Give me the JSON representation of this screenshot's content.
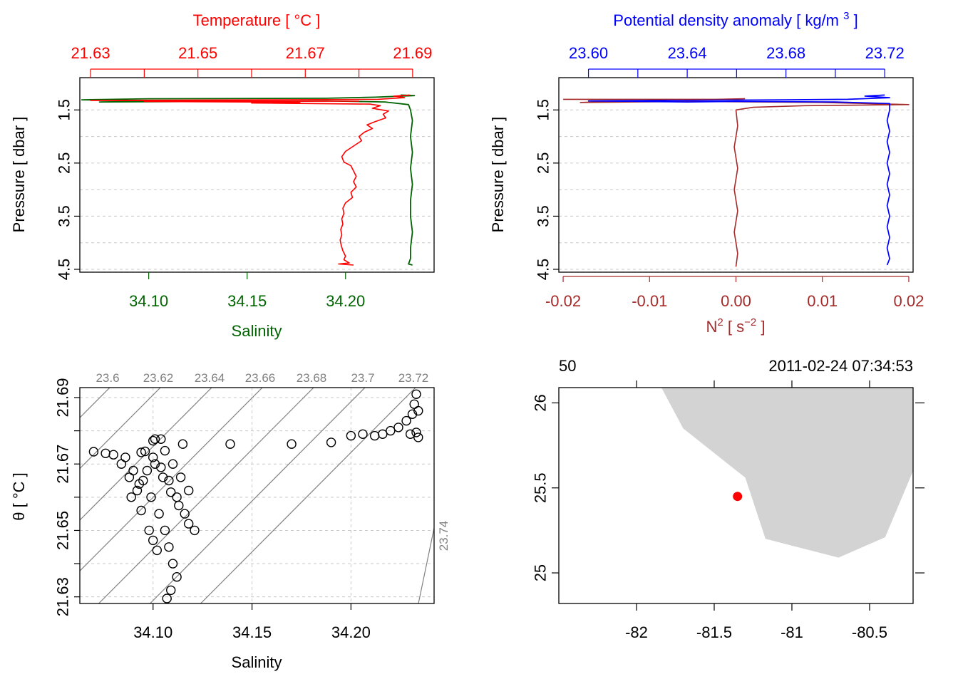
{
  "colors": {
    "temperature": "#ff0000",
    "salinity": "#006400",
    "density": "#0000ff",
    "n2": "#a52a2a",
    "isopycnal": "#808080",
    "land": "#d3d3d3",
    "station": "#ff0000"
  },
  "chart_data": [
    {
      "id": "ts_profile",
      "type": "line",
      "title": "",
      "top_axis_label": "Temperature [ °C ]",
      "bottom_axis_label": "Salinity",
      "ylabel": "Pressure [ dbar ]",
      "ylim": [
        4.5,
        1.0
      ],
      "yticks": [
        1.5,
        2.5,
        3.5,
        4.5
      ],
      "y_gridlines": [
        1.5,
        2.0,
        2.5,
        3.0,
        3.5,
        4.0,
        4.5
      ],
      "temperature_lim": [
        21.628,
        21.694
      ],
      "temperature_ticks": [
        21.63,
        21.64,
        21.65,
        21.66,
        21.67,
        21.68,
        21.69
      ],
      "temperature_tick_labels": [
        "21.63",
        "21.65",
        "21.67",
        "21.69"
      ],
      "salinity_lim": [
        34.065,
        34.245
      ],
      "salinity_ticks": [
        34.1,
        34.15,
        34.2
      ],
      "salinity_tick_labels": [
        "34.10",
        "34.15",
        "34.20"
      ],
      "series": [
        {
          "name": "Temperature",
          "axis": "temperature",
          "points": [
            [
              21.6895,
              1.22
            ],
            [
              21.6865,
              1.24
            ],
            [
              21.6885,
              1.27
            ],
            [
              21.6835,
              1.3
            ],
            [
              21.663,
              1.31
            ],
            [
              21.63,
              1.32
            ],
            [
              21.655,
              1.33
            ],
            [
              21.68,
              1.335
            ],
            [
              21.64,
              1.34
            ],
            [
              21.669,
              1.355
            ],
            [
              21.66,
              1.37
            ],
            [
              21.682,
              1.39
            ],
            [
              21.684,
              1.42
            ],
            [
              21.6825,
              1.47
            ],
            [
              21.6855,
              1.52
            ],
            [
              21.6845,
              1.58
            ],
            [
              21.685,
              1.65
            ],
            [
              21.683,
              1.72
            ],
            [
              21.6815,
              1.78
            ],
            [
              21.6825,
              1.85
            ],
            [
              21.681,
              1.92
            ],
            [
              21.68,
              2.0
            ],
            [
              21.6805,
              2.08
            ],
            [
              21.679,
              2.18
            ],
            [
              21.6775,
              2.28
            ],
            [
              21.6768,
              2.38
            ],
            [
              21.6772,
              2.48
            ],
            [
              21.6785,
              2.55
            ],
            [
              21.679,
              2.65
            ],
            [
              21.6795,
              2.75
            ],
            [
              21.679,
              2.85
            ],
            [
              21.6795,
              2.95
            ],
            [
              21.6785,
              3.05
            ],
            [
              21.6788,
              3.15
            ],
            [
              21.6775,
              3.25
            ],
            [
              21.677,
              3.35
            ],
            [
              21.6772,
              3.45
            ],
            [
              21.6768,
              3.55
            ],
            [
              21.677,
              3.65
            ],
            [
              21.6766,
              3.75
            ],
            [
              21.6768,
              3.85
            ],
            [
              21.6765,
              3.95
            ],
            [
              21.6767,
              4.05
            ],
            [
              21.677,
              4.15
            ],
            [
              21.6775,
              4.25
            ],
            [
              21.6772,
              4.32
            ],
            [
              21.6782,
              4.38
            ],
            [
              21.6762,
              4.4
            ],
            [
              21.679,
              4.42
            ]
          ]
        },
        {
          "name": "Salinity",
          "axis": "salinity",
          "points": [
            [
              34.228,
              1.22
            ],
            [
              34.235,
              1.23
            ],
            [
              34.215,
              1.26
            ],
            [
              34.19,
              1.28
            ],
            [
              34.1,
              1.29
            ],
            [
              34.066,
              1.31
            ],
            [
              34.11,
              1.33
            ],
            [
              34.075,
              1.35
            ],
            [
              34.14,
              1.34
            ],
            [
              34.19,
              1.33
            ],
            [
              34.22,
              1.35
            ],
            [
              34.232,
              1.4
            ],
            [
              34.233,
              1.5
            ],
            [
              34.234,
              1.7
            ],
            [
              34.233,
              2.0
            ],
            [
              34.234,
              2.3
            ],
            [
              34.233,
              2.6
            ],
            [
              34.234,
              2.9
            ],
            [
              34.233,
              3.2
            ],
            [
              34.233,
              3.5
            ],
            [
              34.234,
              3.8
            ],
            [
              34.233,
              4.1
            ],
            [
              34.233,
              4.3
            ],
            [
              34.232,
              4.4
            ],
            [
              34.234,
              4.42
            ]
          ]
        }
      ]
    },
    {
      "id": "density_n2_profile",
      "type": "line",
      "title": "",
      "top_axis_label": "Potential density anomaly [ kg/m3 ]",
      "bottom_axis_label": "N2 [ s-2 ]",
      "ylabel": "Pressure [ dbar ]",
      "ylim": [
        4.5,
        1.0
      ],
      "yticks": [
        1.5,
        2.5,
        3.5,
        4.5
      ],
      "y_gridlines": [
        1.5,
        2.0,
        2.5,
        3.0,
        3.5,
        4.0,
        4.5
      ],
      "density_lim": [
        23.588,
        23.7315
      ],
      "density_ticks": [
        23.6,
        23.62,
        23.64,
        23.66,
        23.68,
        23.7,
        23.72
      ],
      "density_tick_labels": [
        "23.60",
        "23.64",
        "23.68",
        "23.72"
      ],
      "n2_lim": [
        -0.0205,
        0.0205
      ],
      "n2_ticks": [
        -0.02,
        -0.01,
        0.0,
        0.01,
        0.02
      ],
      "n2_tick_labels": [
        "-0.02",
        "-0.01",
        "0.00",
        "0.01",
        "0.02"
      ],
      "series": [
        {
          "name": "Potential density anomaly",
          "axis": "density",
          "points": [
            [
              23.72,
              1.22
            ],
            [
              23.712,
              1.24
            ],
            [
              23.722,
              1.27
            ],
            [
              23.705,
              1.3
            ],
            [
              23.68,
              1.31
            ],
            [
              23.6,
              1.33
            ],
            [
              23.64,
              1.35
            ],
            [
              23.66,
              1.34
            ],
            [
              23.7,
              1.35
            ],
            [
              23.722,
              1.38
            ],
            [
              23.722,
              1.5
            ],
            [
              23.721,
              1.7
            ],
            [
              23.722,
              1.9
            ],
            [
              23.721,
              2.1
            ],
            [
              23.722,
              2.3
            ],
            [
              23.721,
              2.5
            ],
            [
              23.722,
              2.7
            ],
            [
              23.721,
              2.9
            ],
            [
              23.722,
              3.1
            ],
            [
              23.721,
              3.3
            ],
            [
              23.722,
              3.5
            ],
            [
              23.721,
              3.7
            ],
            [
              23.722,
              3.9
            ],
            [
              23.721,
              4.1
            ],
            [
              23.722,
              4.3
            ],
            [
              23.721,
              4.42
            ]
          ]
        },
        {
          "name": "N2",
          "axis": "n2",
          "points": [
            [
              -0.02,
              1.3
            ],
            [
              -0.006,
              1.3
            ],
            [
              0.0,
              1.3
            ],
            [
              0.001,
              1.29
            ],
            [
              -0.012,
              1.33
            ],
            [
              -0.018,
              1.36
            ],
            [
              -0.005,
              1.34
            ],
            [
              0.01,
              1.36
            ],
            [
              0.02,
              1.4
            ],
            [
              0.008,
              1.42
            ],
            [
              0.002,
              1.45
            ],
            [
              0.0,
              1.5
            ],
            [
              0.0002,
              1.8
            ],
            [
              -0.0002,
              2.2
            ],
            [
              0.0002,
              2.6
            ],
            [
              -0.0002,
              3.0
            ],
            [
              0.0002,
              3.4
            ],
            [
              -0.0002,
              3.8
            ],
            [
              0.0002,
              4.2
            ],
            [
              0.0,
              4.45
            ]
          ]
        }
      ]
    },
    {
      "id": "ts_diagram",
      "type": "scatter",
      "title": "",
      "xlabel": "Salinity",
      "ylabel": "θ [ °C ]",
      "xlim": [
        34.063,
        34.242
      ],
      "xticks": [
        34.1,
        34.15,
        34.2
      ],
      "xtick_labels": [
        "34.10",
        "34.15",
        "34.20"
      ],
      "ylim": [
        21.628,
        21.693
      ],
      "yticks": [
        21.63,
        21.64,
        21.65,
        21.66,
        21.67,
        21.68,
        21.69
      ],
      "ytick_labels": [
        "21.63",
        "21.65",
        "21.67",
        "21.69"
      ],
      "grid": true,
      "isopycnal_labels": [
        "23.6",
        "23.62",
        "23.64",
        "23.66",
        "23.68",
        "23.7",
        "23.72"
      ],
      "isopycnal_side_label": "23.74",
      "points": [
        [
          34.07,
          21.6737
        ],
        [
          34.076,
          21.6732
        ],
        [
          34.08,
          21.6728
        ],
        [
          34.084,
          21.67
        ],
        [
          34.088,
          21.666
        ],
        [
          34.092,
          21.662
        ],
        [
          34.094,
          21.656
        ],
        [
          34.098,
          21.65
        ],
        [
          34.1,
          21.647
        ],
        [
          34.102,
          21.644
        ],
        [
          34.086,
          21.672
        ],
        [
          34.09,
          21.668
        ],
        [
          34.095,
          21.665
        ],
        [
          34.099,
          21.66
        ],
        [
          34.103,
          21.655
        ],
        [
          34.106,
          21.65
        ],
        [
          34.108,
          21.645
        ],
        [
          34.11,
          21.64
        ],
        [
          34.112,
          21.636
        ],
        [
          34.109,
          21.632
        ],
        [
          34.107,
          21.6295
        ],
        [
          34.094,
          21.6735
        ],
        [
          34.096,
          21.6738
        ],
        [
          34.1,
          21.672
        ],
        [
          34.104,
          21.669
        ],
        [
          34.108,
          21.665
        ],
        [
          34.112,
          21.66
        ],
        [
          34.116,
          21.655
        ],
        [
          34.118,
          21.652
        ],
        [
          34.121,
          21.65
        ],
        [
          34.1,
          21.677
        ],
        [
          34.106,
          21.674
        ],
        [
          34.11,
          21.67
        ],
        [
          34.114,
          21.666
        ],
        [
          34.118,
          21.662
        ],
        [
          34.113,
          21.6575
        ],
        [
          34.109,
          21.6615
        ],
        [
          34.105,
          21.666
        ],
        [
          34.101,
          21.67
        ],
        [
          34.097,
          21.668
        ],
        [
          34.093,
          21.664
        ],
        [
          34.089,
          21.66
        ],
        [
          34.101,
          21.6775
        ],
        [
          34.104,
          21.6775
        ],
        [
          34.115,
          21.676
        ],
        [
          34.139,
          21.676
        ],
        [
          34.17,
          21.676
        ],
        [
          34.19,
          21.6765
        ],
        [
          34.2,
          21.6785
        ],
        [
          34.206,
          21.679
        ],
        [
          34.212,
          21.6785
        ],
        [
          34.216,
          21.679
        ],
        [
          34.22,
          21.68
        ],
        [
          34.224,
          21.681
        ],
        [
          34.228,
          21.683
        ],
        [
          34.231,
          21.685
        ],
        [
          34.232,
          21.688
        ],
        [
          34.233,
          21.691
        ],
        [
          34.234,
          21.686
        ],
        [
          34.233,
          21.6795
        ],
        [
          34.234,
          21.678
        ],
        [
          34.23,
          21.679
        ]
      ]
    },
    {
      "id": "station_map",
      "type": "scatter",
      "title": "",
      "top_left_label": "50",
      "top_right_label": "2011-02-24 07:34:53",
      "xlim": [
        -82.5,
        -80.22
      ],
      "xticks": [
        -82,
        -81.5,
        -81,
        -80.5
      ],
      "xtick_labels": [
        "-82",
        "-81.5",
        "-81",
        "-80.5"
      ],
      "ylim": [
        24.82,
        26.09
      ],
      "yticks": [
        25,
        25.5,
        26
      ],
      "ytick_labels": [
        "25",
        "25.5",
        "26"
      ],
      "top_ticks": [
        -82,
        -81.5,
        -81,
        -80.5
      ],
      "land": [
        [
          -81.84,
          26.09
        ],
        [
          -81.7,
          25.85
        ],
        [
          -81.3,
          25.56
        ],
        [
          -81.17,
          25.2
        ],
        [
          -80.7,
          25.09
        ],
        [
          -80.4,
          25.21
        ],
        [
          -80.22,
          25.6
        ],
        [
          -80.22,
          26.09
        ]
      ],
      "station": {
        "lon": -81.35,
        "lat": 25.45
      }
    }
  ]
}
